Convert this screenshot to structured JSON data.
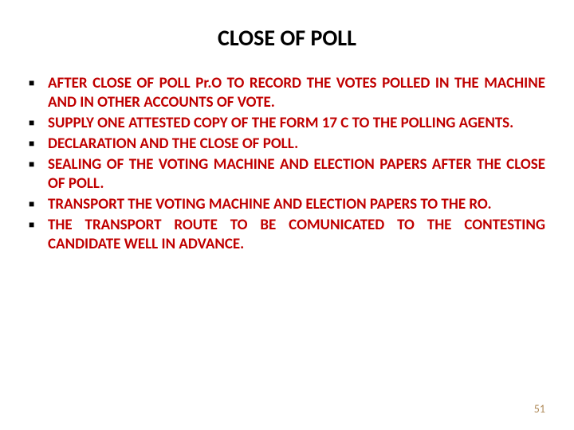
{
  "title": {
    "text": "CLOSE OF POLL",
    "fontsize": 28,
    "color": "#000000",
    "weight": "700"
  },
  "bullets": {
    "color": "#c00000",
    "marker_color": "#000000",
    "fontsize": 19,
    "line_height": 24,
    "weight": "700",
    "items": [
      "AFTER CLOSE OF POLL Pr.O TO RECORD THE VOTES POLLED IN THE MACHINE AND IN OTHER ACCOUNTS OF VOTE.",
      "SUPPLY ONE ATTESTED COPY OF THE FORM 17 C TO THE POLLING AGENTS.",
      "DECLARATION AND THE CLOSE OF POLL.",
      "SEALING OF THE VOTING MACHINE AND ELECTION PAPERS AFTER THE CLOSE OF POLL.",
      "TRANSPORT THE VOTING MACHINE AND ELECTION PAPERS TO THE RO.",
      "THE TRANSPORT ROUTE TO BE COMUNICATED TO THE CONTESTING CANDIDATE WELL IN ADVANCE."
    ]
  },
  "page_number": {
    "text": "51",
    "fontsize": 14,
    "color": "#b08b5a"
  },
  "background_color": "#ffffff"
}
